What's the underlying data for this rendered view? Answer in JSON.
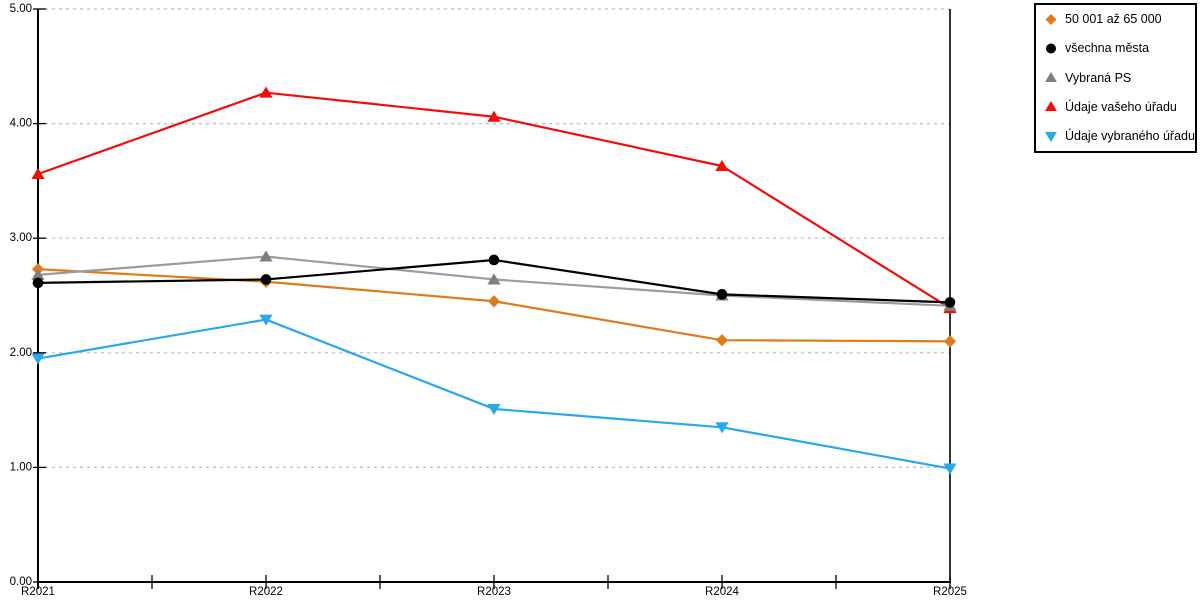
{
  "chart_data": {
    "type": "line",
    "title": "",
    "categories": [
      "R2021",
      "R2022",
      "R2023",
      "R2024",
      "R2025"
    ],
    "y_ticks": [
      0,
      1,
      2,
      3,
      4,
      5
    ],
    "y_tick_labels": [
      "0.00",
      "1.00",
      "2.00",
      "3.00",
      "4.00",
      "5.00"
    ],
    "ylim": [
      0,
      5
    ],
    "grid": "horizontal-dashed",
    "legend_position": "top-right",
    "axis_color": "#000000",
    "gridline_color": "#bbbbbb",
    "background": "#ffffff",
    "series": [
      {
        "name": "50 001 až 65 000",
        "marker": "diamond",
        "color": "#df7a1d",
        "values": [
          2.73,
          2.62,
          2.45,
          2.11,
          2.1
        ]
      },
      {
        "name": "všechna města",
        "marker": "circle",
        "color": "#000000",
        "values": [
          2.61,
          2.64,
          2.81,
          2.51,
          2.44
        ]
      },
      {
        "name": "Vybraná PS",
        "marker": "triangle-up",
        "color": "#7f7f7f",
        "line_color": "#9b9b9b",
        "values": [
          2.68,
          2.84,
          2.64,
          2.5,
          2.41
        ]
      },
      {
        "name": "Údaje vašeho úřadu",
        "marker": "triangle-up",
        "color": "#f20d0d",
        "values": [
          3.56,
          4.27,
          4.06,
          3.63,
          2.39
        ]
      },
      {
        "name": "Údaje vybraného úřadu",
        "marker": "triangle-down",
        "color": "#29a8e8",
        "values": [
          1.95,
          2.29,
          1.51,
          1.35,
          0.99
        ]
      }
    ]
  }
}
